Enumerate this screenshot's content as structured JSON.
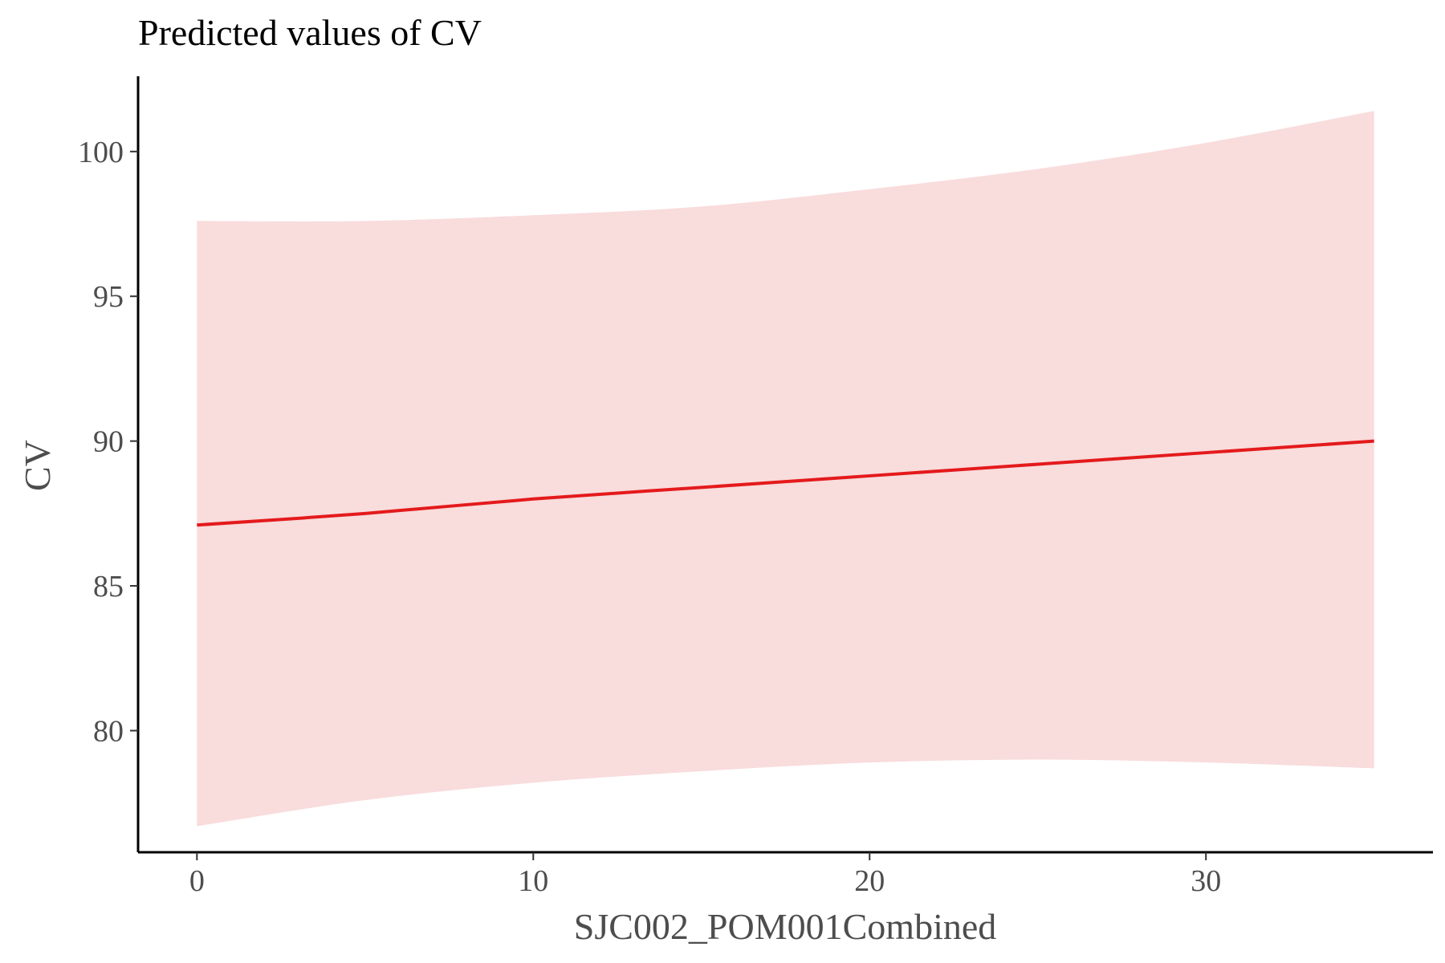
{
  "chart_data": {
    "type": "line",
    "title": "Predicted values of CV",
    "xlabel": "SJC002_POM001Combined",
    "ylabel": "CV",
    "xlim": [
      -1.75,
      36.75
    ],
    "ylim": [
      75.8,
      102.6
    ],
    "x_ticks": [
      0,
      10,
      20,
      30
    ],
    "y_ticks": [
      80,
      85,
      90,
      95,
      100
    ],
    "grid": false,
    "legend": "none",
    "series": [
      {
        "color": "#e41a1c",
        "x": [
          0,
          5,
          10,
          15,
          20,
          25,
          30,
          35
        ],
        "y": [
          87.1,
          87.5,
          88.0,
          88.4,
          88.8,
          89.2,
          89.6,
          90.0
        ],
        "ci_lower": [
          76.7,
          77.6,
          78.2,
          78.6,
          78.9,
          79.0,
          78.9,
          78.7
        ],
        "ci_upper": [
          97.6,
          97.6,
          97.8,
          98.1,
          98.7,
          99.4,
          100.3,
          101.4
        ],
        "band_color": "#f9dcdc"
      }
    ]
  }
}
